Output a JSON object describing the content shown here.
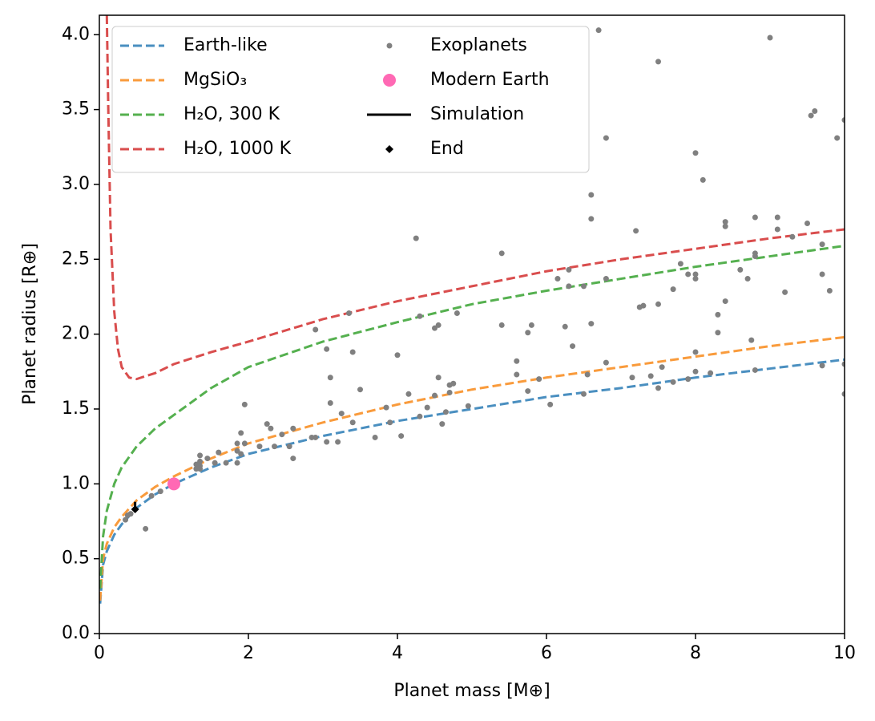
{
  "chart_data": {
    "type": "line",
    "xlabel": "Planet mass [M⊕]",
    "ylabel": "Planet radius [R⊕]",
    "xlim": [
      0,
      10
    ],
    "ylim": [
      0,
      4.13
    ],
    "xticks": [
      0,
      2,
      4,
      6,
      8,
      10
    ],
    "yticks": [
      {
        "value": 0,
        "label": "0.0"
      },
      0.5,
      {
        "value": 1,
        "label": "1.0"
      },
      1.5,
      {
        "value": 2,
        "label": "2.0"
      },
      2.5,
      {
        "value": 3,
        "label": "3.0"
      },
      3.5,
      {
        "value": 4,
        "label": "4.0"
      }
    ],
    "legend": "upper left",
    "series": [
      {
        "name": "Earth-like",
        "type": "line",
        "linestyle": "dashed",
        "color": "#4a8fc0",
        "x": [
          0.01,
          0.05,
          0.1,
          0.2,
          0.3,
          0.5,
          0.75,
          1,
          1.5,
          2,
          3,
          4,
          5,
          6,
          7,
          8,
          9,
          10
        ],
        "values": [
          0.2,
          0.46,
          0.55,
          0.66,
          0.73,
          0.84,
          0.93,
          1.0,
          1.11,
          1.2,
          1.32,
          1.42,
          1.5,
          1.58,
          1.64,
          1.71,
          1.77,
          1.83
        ]
      },
      {
        "name": "MgSiO₃",
        "type": "line",
        "linestyle": "dashed",
        "color": "#f99b3c",
        "x": [
          0.01,
          0.05,
          0.1,
          0.2,
          0.3,
          0.5,
          0.75,
          1,
          1.5,
          2,
          3,
          4,
          5,
          6,
          7,
          8,
          9,
          10
        ],
        "values": [
          0.22,
          0.5,
          0.6,
          0.71,
          0.78,
          0.89,
          0.98,
          1.05,
          1.17,
          1.27,
          1.41,
          1.53,
          1.63,
          1.71,
          1.78,
          1.85,
          1.92,
          1.98
        ]
      },
      {
        "name": "H₂O, 300 K",
        "type": "line",
        "linestyle": "dashed",
        "color": "#55b04f",
        "x": [
          0.01,
          0.05,
          0.1,
          0.2,
          0.3,
          0.5,
          0.75,
          1,
          1.5,
          2,
          3,
          4,
          5,
          6,
          7,
          8,
          9,
          10
        ],
        "values": [
          0.3,
          0.65,
          0.82,
          1.0,
          1.11,
          1.25,
          1.37,
          1.46,
          1.64,
          1.78,
          1.95,
          2.08,
          2.2,
          2.29,
          2.37,
          2.45,
          2.52,
          2.59
        ]
      },
      {
        "name": "H₂O, 1000 K",
        "type": "line",
        "linestyle": "dashed",
        "color": "#d94d4d",
        "x": [
          0.1,
          0.12,
          0.15,
          0.2,
          0.25,
          0.3,
          0.4,
          0.5,
          0.75,
          1,
          1.5,
          2,
          3,
          4,
          5,
          6,
          7,
          8,
          9,
          10
        ],
        "values": [
          4.13,
          3.5,
          2.7,
          2.15,
          1.9,
          1.78,
          1.71,
          1.7,
          1.74,
          1.8,
          1.88,
          1.95,
          2.1,
          2.22,
          2.32,
          2.42,
          2.5,
          2.57,
          2.64,
          2.7
        ]
      },
      {
        "name": "Exoplanets",
        "type": "scatter",
        "marker": "o",
        "size": 3.5,
        "color": "#808080",
        "x": [
          6.7,
          9.0,
          7.5,
          9.6,
          9.55,
          10,
          9.9,
          6.8,
          8.0,
          8.1,
          6.6,
          6.6,
          8.8,
          9.1,
          8.4,
          9.5,
          8.4,
          9.1,
          7.2,
          4.25,
          9.3,
          9.7,
          8.8,
          5.4,
          8.8,
          7.8,
          8.6,
          6.3,
          9.7,
          7.9,
          8.0,
          6.8,
          8.7,
          6.15,
          8.0,
          6.3,
          6.5,
          7.7,
          9.2,
          9.8,
          8.4,
          7.5,
          7.3,
          7.25,
          4.3,
          8.3,
          3.35,
          4.8,
          6.6,
          4.55,
          5.8,
          5.4,
          4.5,
          6.25,
          2.9,
          5.75,
          8.3,
          6.35,
          3.05,
          3.4,
          4.0,
          8.0,
          5.6,
          6.8,
          8.75,
          10,
          9.7,
          7.55,
          8.8,
          8.0,
          7.4,
          7.15,
          3.1,
          4.55,
          5.6,
          6.55,
          5.9,
          7.7,
          4.75,
          4.7,
          7.9,
          8.2,
          3.5,
          5.75,
          4.7,
          7.5,
          4.15,
          6.5,
          10,
          4.5,
          3.1,
          1.95,
          6.05,
          4.4,
          4.95,
          3.85,
          4.65,
          3.25,
          3.9,
          4.6,
          3.4,
          2.25,
          2.3,
          2.6,
          1.9,
          4.05,
          3.7,
          4.3,
          2.45,
          2.85,
          2.9,
          3.05,
          3.2,
          1.95,
          1.85,
          2.15,
          2.35,
          2.55,
          1.85,
          1.6,
          1.35,
          1.9,
          1.45,
          2.6,
          1.35,
          1.55,
          1.7,
          1.85,
          1.3,
          1.35,
          1.35,
          1.3,
          0.7,
          0.35,
          0.38,
          0.42,
          0.62,
          0.82
        ],
        "values": [
          4.03,
          3.98,
          3.82,
          3.49,
          3.46,
          3.43,
          3.31,
          3.31,
          3.21,
          3.03,
          2.93,
          2.77,
          2.78,
          2.78,
          2.75,
          2.74,
          2.72,
          2.7,
          2.69,
          2.64,
          2.65,
          2.6,
          2.54,
          2.54,
          2.52,
          2.47,
          2.43,
          2.43,
          2.4,
          2.4,
          2.4,
          2.37,
          2.37,
          2.37,
          2.37,
          2.32,
          2.32,
          2.3,
          2.28,
          2.29,
          2.22,
          2.2,
          2.19,
          2.18,
          2.12,
          2.13,
          2.14,
          2.14,
          2.07,
          2.06,
          2.06,
          2.06,
          2.04,
          2.05,
          2.03,
          2.01,
          2.01,
          1.92,
          1.9,
          1.88,
          1.86,
          1.88,
          1.82,
          1.81,
          1.96,
          1.8,
          1.79,
          1.78,
          1.76,
          1.75,
          1.72,
          1.71,
          1.71,
          1.71,
          1.73,
          1.73,
          1.7,
          1.68,
          1.67,
          1.66,
          1.7,
          1.74,
          1.63,
          1.62,
          1.61,
          1.64,
          1.6,
          1.6,
          1.6,
          1.59,
          1.54,
          1.53,
          1.53,
          1.51,
          1.52,
          1.51,
          1.48,
          1.47,
          1.41,
          1.4,
          1.41,
          1.4,
          1.37,
          1.37,
          1.34,
          1.32,
          1.31,
          1.45,
          1.33,
          1.31,
          1.31,
          1.28,
          1.28,
          1.27,
          1.27,
          1.25,
          1.25,
          1.25,
          1.22,
          1.21,
          1.19,
          1.2,
          1.17,
          1.17,
          1.15,
          1.14,
          1.14,
          1.14,
          1.13,
          1.12,
          1.1,
          1.1,
          0.92,
          0.76,
          0.79,
          0.8,
          0.7,
          0.95
        ]
      },
      {
        "name": "Modern Earth",
        "type": "scatter",
        "marker": "o",
        "size": 8,
        "color": "#ff69b4",
        "x": [
          1
        ],
        "values": [
          1
        ]
      },
      {
        "name": "Simulation",
        "type": "line",
        "linestyle": "solid",
        "color": "#000000",
        "x": [
          0.48,
          0.48
        ],
        "values": [
          0.88,
          0.83
        ]
      },
      {
        "name": "End",
        "type": "scatter",
        "marker": "D",
        "size": 5,
        "color": "#000000",
        "x": [
          0.48
        ],
        "values": [
          0.83
        ]
      }
    ]
  }
}
